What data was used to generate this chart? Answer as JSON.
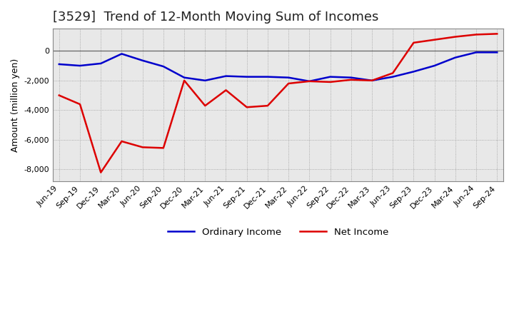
{
  "title": "[3529]  Trend of 12-Month Moving Sum of Incomes",
  "ylabel": "Amount (million yen)",
  "x_labels": [
    "Jun-19",
    "Sep-19",
    "Dec-19",
    "Mar-20",
    "Jun-20",
    "Sep-20",
    "Dec-20",
    "Mar-21",
    "Jun-21",
    "Sep-21",
    "Dec-21",
    "Mar-22",
    "Jun-22",
    "Sep-22",
    "Dec-22",
    "Mar-23",
    "Jun-23",
    "Sep-23",
    "Dec-23",
    "Mar-24",
    "Jun-24",
    "Sep-24"
  ],
  "ordinary_income": [
    -900,
    -1000,
    -850,
    -200,
    -650,
    -1050,
    -1800,
    -2000,
    -1700,
    -1750,
    -1750,
    -1800,
    -2050,
    -1750,
    -1800,
    -2000,
    -1750,
    -1400,
    -1000,
    -450,
    -100,
    -100
  ],
  "net_income": [
    -3000,
    -3600,
    -8200,
    -6100,
    -6500,
    -6550,
    -2000,
    -3700,
    -2650,
    -3800,
    -3700,
    -2200,
    -2050,
    -2100,
    -1950,
    -2000,
    -1500,
    550,
    750,
    950,
    1100,
    1150
  ],
  "ordinary_income_color": "#0000cc",
  "net_income_color": "#dd0000",
  "ylim": [
    -8800,
    1500
  ],
  "yticks": [
    -8000,
    -6000,
    -4000,
    -2000,
    0
  ],
  "plot_bg_color": "#e8e8e8",
  "fig_bg_color": "#ffffff",
  "grid_color": "#999999",
  "legend_ordinary": "Ordinary Income",
  "legend_net": "Net Income",
  "line_width": 1.8,
  "title_fontsize": 13,
  "ylabel_fontsize": 9,
  "tick_fontsize": 8
}
